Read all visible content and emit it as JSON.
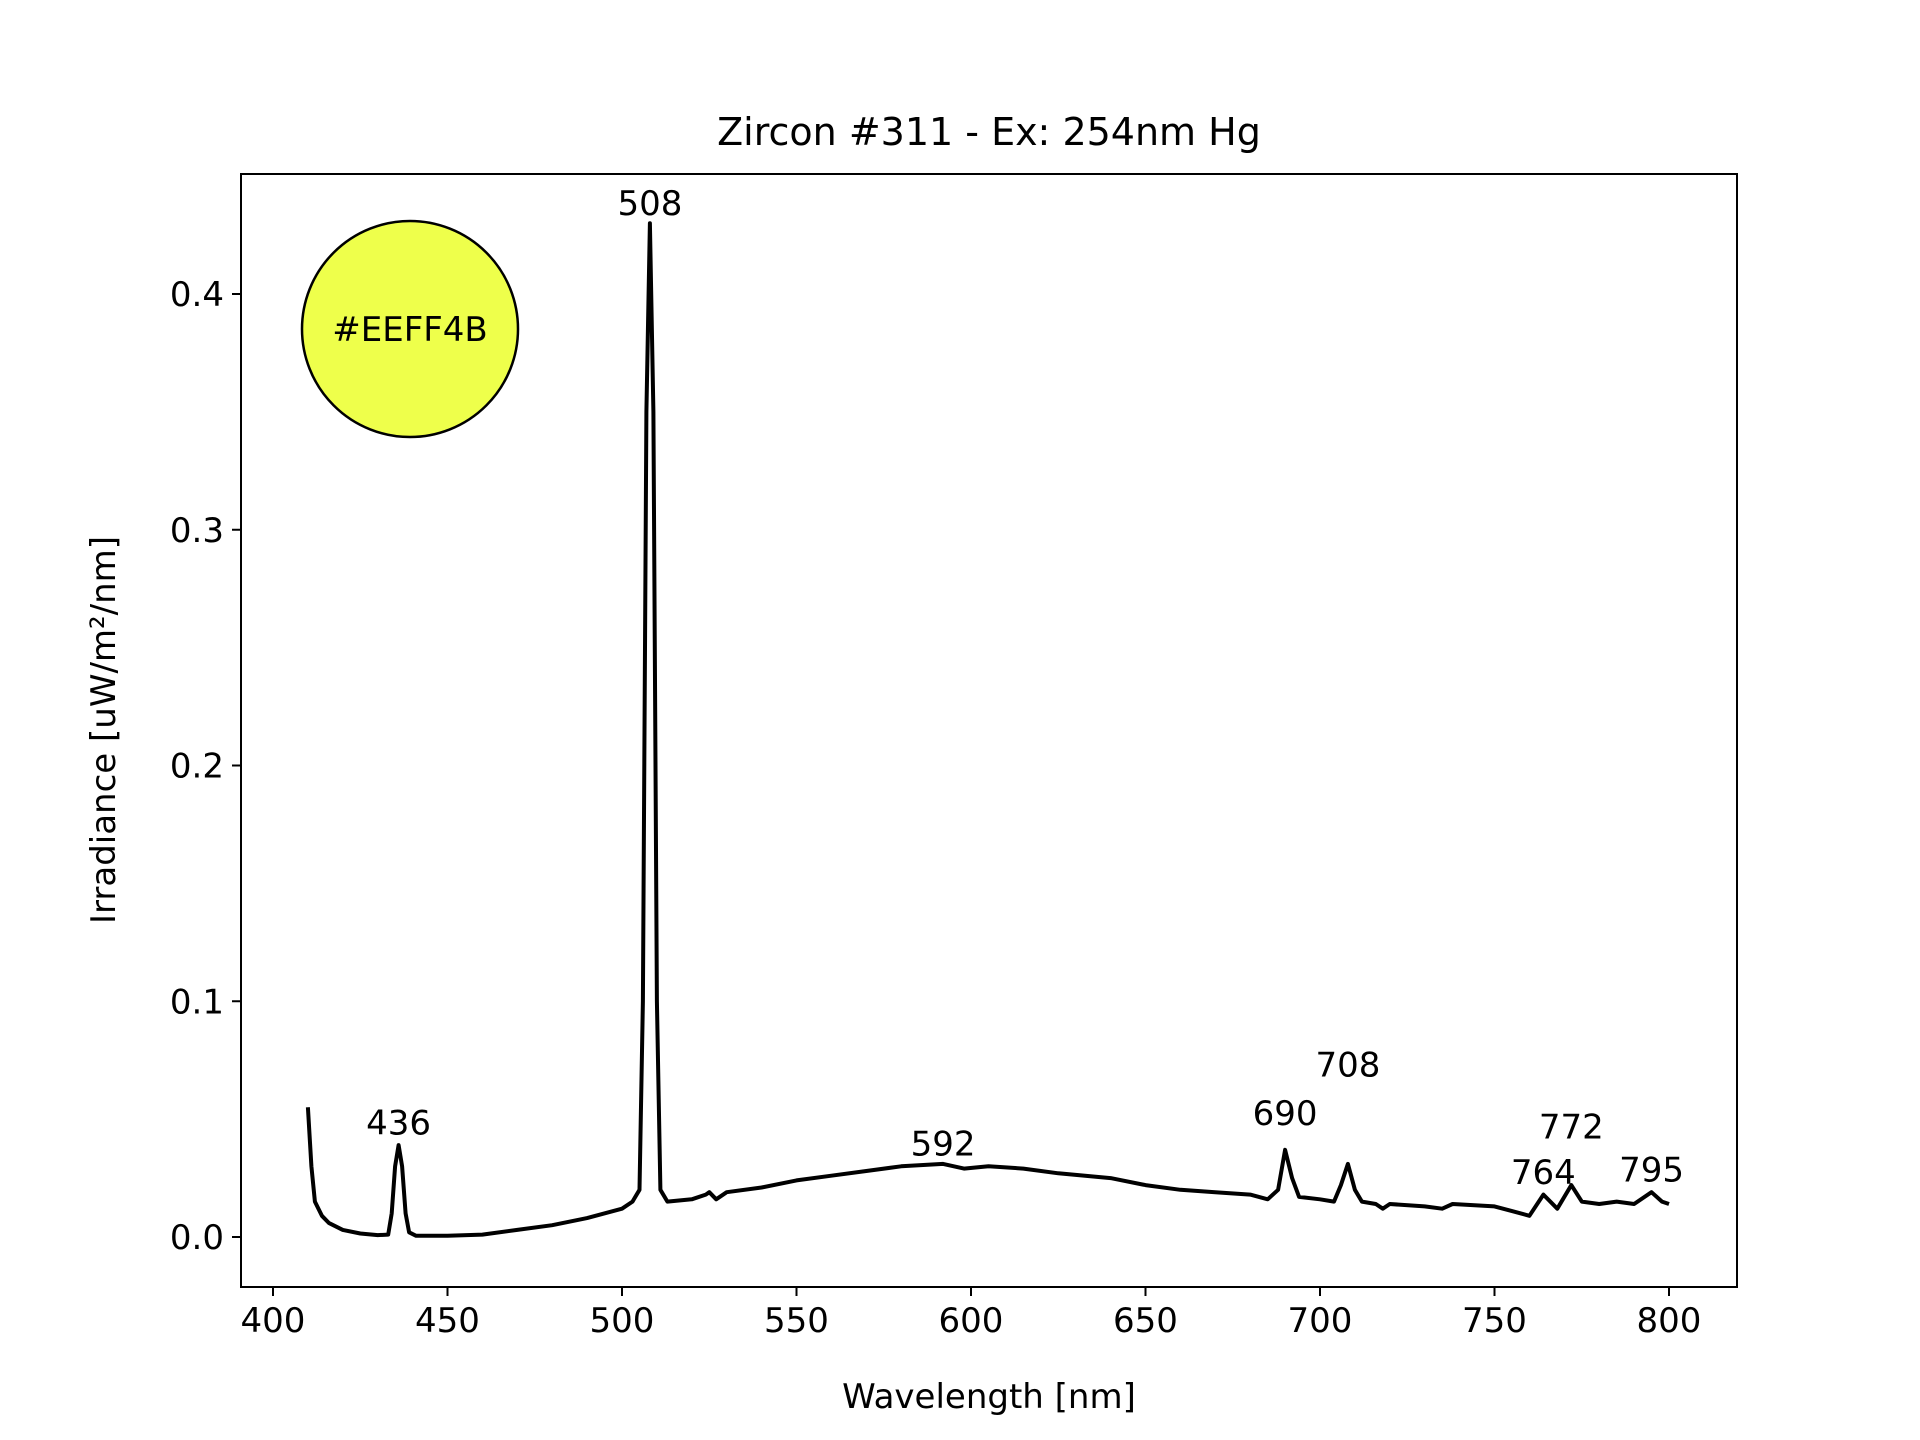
{
  "chart_data": {
    "type": "line",
    "title": "Zircon #311 - Ex: 254nm Hg",
    "xlabel": "Wavelength [nm]",
    "ylabel": "Irradiance [uW/m²/nm]",
    "xlim": [
      390,
      820
    ],
    "ylim": [
      -0.022,
      0.45
    ],
    "xticks": [
      400,
      450,
      500,
      550,
      600,
      650,
      700,
      750,
      800
    ],
    "yticks": [
      0.0,
      0.1,
      0.2,
      0.3,
      0.4
    ],
    "ytick_labels": [
      "0.0",
      "0.1",
      "0.2",
      "0.3",
      "0.4"
    ],
    "grid": false,
    "color_swatch": {
      "label": "#EEFF4B",
      "color": "#EEFF4B"
    },
    "series": [
      {
        "name": "spectrum",
        "color": "#000000",
        "x": [
          410,
          411,
          412,
          414,
          416,
          420,
          425,
          430,
          433,
          434,
          435,
          436,
          437,
          438,
          439,
          441,
          450,
          460,
          470,
          480,
          490,
          500,
          503,
          505,
          506,
          507,
          508,
          509,
          510,
          511,
          513,
          520,
          524,
          525,
          527,
          530,
          540,
          550,
          560,
          570,
          580,
          592,
          598,
          605,
          615,
          625,
          640,
          650,
          660,
          670,
          680,
          685,
          688,
          690,
          692,
          694,
          700,
          704,
          706,
          708,
          710,
          712,
          716,
          718,
          720,
          730,
          735,
          738,
          750,
          755,
          760,
          764,
          768,
          772,
          775,
          780,
          785,
          790,
          795,
          798,
          800
        ],
        "y": [
          0.055,
          0.03,
          0.015,
          0.009,
          0.006,
          0.003,
          0.0015,
          0.0008,
          0.001,
          0.01,
          0.03,
          0.039,
          0.03,
          0.01,
          0.002,
          0.0005,
          0.0005,
          0.001,
          0.003,
          0.005,
          0.008,
          0.012,
          0.015,
          0.02,
          0.1,
          0.35,
          0.43,
          0.35,
          0.1,
          0.02,
          0.015,
          0.016,
          0.018,
          0.019,
          0.016,
          0.019,
          0.021,
          0.024,
          0.026,
          0.028,
          0.03,
          0.031,
          0.029,
          0.03,
          0.029,
          0.027,
          0.025,
          0.022,
          0.02,
          0.019,
          0.018,
          0.016,
          0.02,
          0.037,
          0.025,
          0.017,
          0.016,
          0.015,
          0.022,
          0.031,
          0.02,
          0.015,
          0.014,
          0.012,
          0.014,
          0.013,
          0.012,
          0.014,
          0.013,
          0.011,
          0.009,
          0.018,
          0.012,
          0.022,
          0.015,
          0.014,
          0.015,
          0.014,
          0.019,
          0.015,
          0.014
        ]
      }
    ],
    "annotations": [
      {
        "text": "436",
        "x": 436,
        "y": 0.041
      },
      {
        "text": "508",
        "x": 508,
        "y": 0.431
      },
      {
        "text": "592",
        "x": 592,
        "y": 0.032
      },
      {
        "text": "690",
        "x": 690,
        "y": 0.045
      },
      {
        "text": "708",
        "x": 708,
        "y": 0.035
      },
      {
        "text": "764",
        "x": 764,
        "y": 0.02
      },
      {
        "text": "772",
        "x": 772,
        "y": 0.024
      },
      {
        "text": "795",
        "x": 795,
        "y": 0.021
      }
    ]
  }
}
